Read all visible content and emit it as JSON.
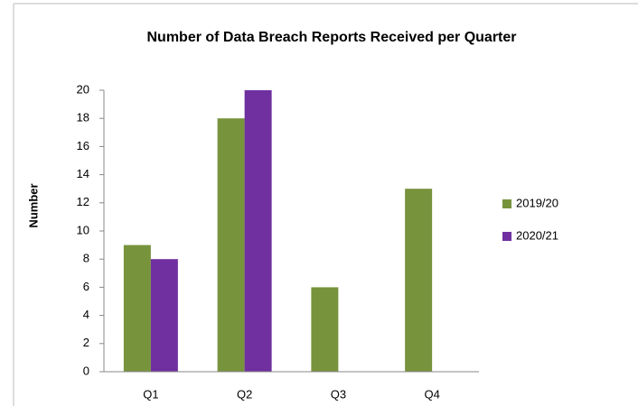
{
  "chart_data": {
    "type": "bar",
    "title": "Number of Data Breach Reports Received per Quarter",
    "y_label": "Number",
    "categories": [
      "Q1",
      "Q2",
      "Q3",
      "Q4"
    ],
    "series": [
      {
        "name": "2019/20",
        "color": "#77933c",
        "values": [
          9,
          18,
          6,
          13
        ]
      },
      {
        "name": "2020/21",
        "color": "#7030a0",
        "values": [
          8,
          20,
          null,
          null
        ]
      }
    ],
    "ylim": [
      0,
      20
    ],
    "yticks": [
      0,
      2,
      4,
      6,
      8,
      10,
      12,
      14,
      16,
      18,
      20
    ],
    "grid": false,
    "legend": "right"
  }
}
